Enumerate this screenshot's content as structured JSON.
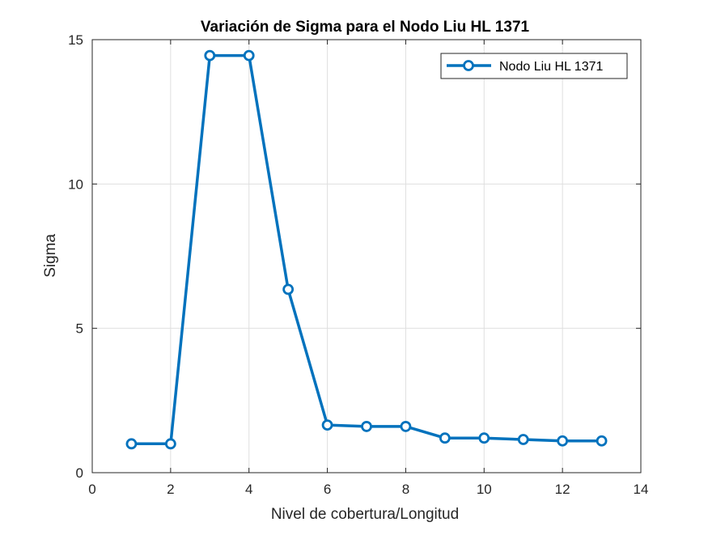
{
  "chart_data": {
    "type": "line",
    "title": "Variación de Sigma para el Nodo Liu HL 1371",
    "xlabel": "Nivel de cobertura/Longitud",
    "ylabel": "Sigma",
    "xlim": [
      0,
      14
    ],
    "ylim": [
      0,
      15
    ],
    "xticks": [
      0,
      2,
      4,
      6,
      8,
      10,
      12,
      14
    ],
    "yticks": [
      0,
      5,
      10,
      15
    ],
    "xtick_labels": [
      "0",
      "2",
      "4",
      "6",
      "8",
      "10",
      "12",
      "14"
    ],
    "ytick_labels": [
      "0",
      "5",
      "10",
      "15"
    ],
    "grid": true,
    "legend_position": "top-right",
    "marker": "circle",
    "series": [
      {
        "name": "Nodo Liu HL 1371",
        "color": "#0072BD",
        "x": [
          1,
          2,
          3,
          4,
          5,
          6,
          7,
          8,
          9,
          10,
          11,
          12,
          13
        ],
        "y": [
          1.0,
          1.0,
          14.45,
          14.45,
          6.35,
          1.65,
          1.6,
          1.6,
          1.2,
          1.2,
          1.15,
          1.1,
          1.1
        ]
      }
    ]
  }
}
